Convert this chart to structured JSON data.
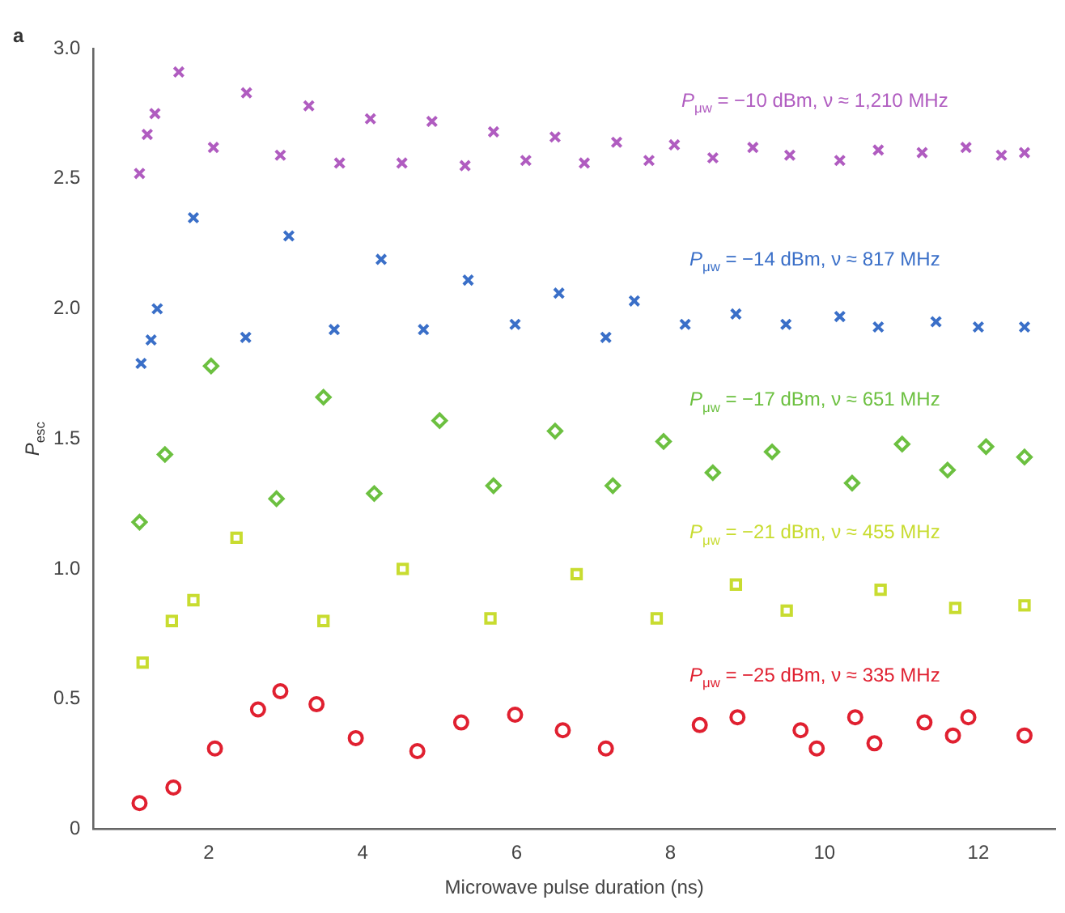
{
  "chart_data": {
    "type": "scatter",
    "xlabel": "Microwave pulse duration (ns)",
    "ylabel": "P$_{esc}$",
    "annotations": [
      "a"
    ],
    "xlim": [
      0.5,
      13
    ],
    "xticks": [
      2,
      4,
      6,
      8,
      10,
      12
    ],
    "ylim": [
      0,
      3
    ],
    "yticks": [
      0,
      {
        "value": 0.5,
        "label": "0.5"
      },
      {
        "value": 1,
        "label": "1.0"
      },
      {
        "value": 1.5,
        "label": "1.5"
      },
      {
        "value": 2,
        "label": "2.0"
      },
      {
        "value": 2.5,
        "label": "2.5"
      },
      {
        "value": 3,
        "label": "3.0"
      }
    ],
    "grid": false,
    "legend": false,
    "series": [
      {
        "name": "P$_{μw}$ = −10 dBm, ν ≈ 1,210 MHz",
        "color": "#b05cc0",
        "marker": "cross",
        "x": [
          1.1,
          1.2,
          1.3,
          1.61,
          2.06,
          2.49,
          2.93,
          3.3,
          3.7,
          4.1,
          4.51,
          4.9,
          5.33,
          5.7,
          6.12,
          6.5,
          6.88,
          7.3,
          7.72,
          8.05,
          8.55,
          9.07,
          9.55,
          10.2,
          10.7,
          11.27,
          11.84,
          12.3,
          12.6
        ],
        "values": [
          2.52,
          2.67,
          2.75,
          2.91,
          2.62,
          2.83,
          2.59,
          2.78,
          2.56,
          2.73,
          2.56,
          2.72,
          2.55,
          2.68,
          2.57,
          2.66,
          2.56,
          2.64,
          2.57,
          2.63,
          2.58,
          2.62,
          2.59,
          2.57,
          2.61,
          2.6,
          2.62,
          2.59,
          2.6
        ]
      },
      {
        "name": "P$_{μw}$ = −14 dBm, ν ≈ 817 MHz",
        "color": "#3a6fc8",
        "marker": "cross",
        "x": [
          1.12,
          1.25,
          1.33,
          1.8,
          2.48,
          3.04,
          3.63,
          4.24,
          4.79,
          5.37,
          5.98,
          6.55,
          7.16,
          7.53,
          8.19,
          8.85,
          9.5,
          10.2,
          10.7,
          11.45,
          12.0,
          12.6
        ],
        "values": [
          1.79,
          1.88,
          2.0,
          2.35,
          1.89,
          2.28,
          1.92,
          2.19,
          1.92,
          2.11,
          1.94,
          2.06,
          1.89,
          2.03,
          1.94,
          1.98,
          1.94,
          1.97,
          1.93,
          1.95,
          1.93,
          1.93
        ]
      },
      {
        "name": "P$_{μw}$ = −17 dBm, ν ≈ 651 MHz",
        "color": "#6cc040",
        "marker": "diamond",
        "x": [
          1.1,
          1.43,
          2.03,
          2.88,
          3.49,
          4.15,
          5.0,
          5.7,
          6.5,
          7.25,
          7.91,
          8.55,
          9.32,
          10.36,
          11.01,
          11.6,
          12.1,
          12.6
        ],
        "values": [
          1.18,
          1.44,
          1.78,
          1.27,
          1.66,
          1.29,
          1.57,
          1.32,
          1.53,
          1.32,
          1.49,
          1.37,
          1.45,
          1.33,
          1.48,
          1.38,
          1.47,
          1.43
        ]
      },
      {
        "name": "P$_{μw}$ = −21 dBm, ν ≈ 455 MHz",
        "color": "#c8dc30",
        "marker": "square",
        "x": [
          1.14,
          1.52,
          1.8,
          2.36,
          3.49,
          4.52,
          5.66,
          6.78,
          7.82,
          8.85,
          9.51,
          10.73,
          11.7,
          12.6
        ],
        "values": [
          0.64,
          0.8,
          0.88,
          1.12,
          0.8,
          1.0,
          0.81,
          0.98,
          0.81,
          0.94,
          0.84,
          0.92,
          0.85,
          0.86
        ]
      },
      {
        "name": "P$_{μw}$ = −25 dBm, ν ≈ 335 MHz",
        "color": "#e02030",
        "marker": "circle",
        "x": [
          1.1,
          1.54,
          2.08,
          2.64,
          2.93,
          3.4,
          3.91,
          4.71,
          5.28,
          5.98,
          6.6,
          7.16,
          8.38,
          8.87,
          9.69,
          9.9,
          10.4,
          10.65,
          11.3,
          11.67,
          11.87,
          12.6
        ],
        "values": [
          0.1,
          0.16,
          0.31,
          0.46,
          0.53,
          0.48,
          0.35,
          0.3,
          0.41,
          0.44,
          0.38,
          0.31,
          0.4,
          0.43,
          0.38,
          0.31,
          0.43,
          0.33,
          0.41,
          0.36,
          0.43,
          0.36
        ]
      }
    ]
  }
}
